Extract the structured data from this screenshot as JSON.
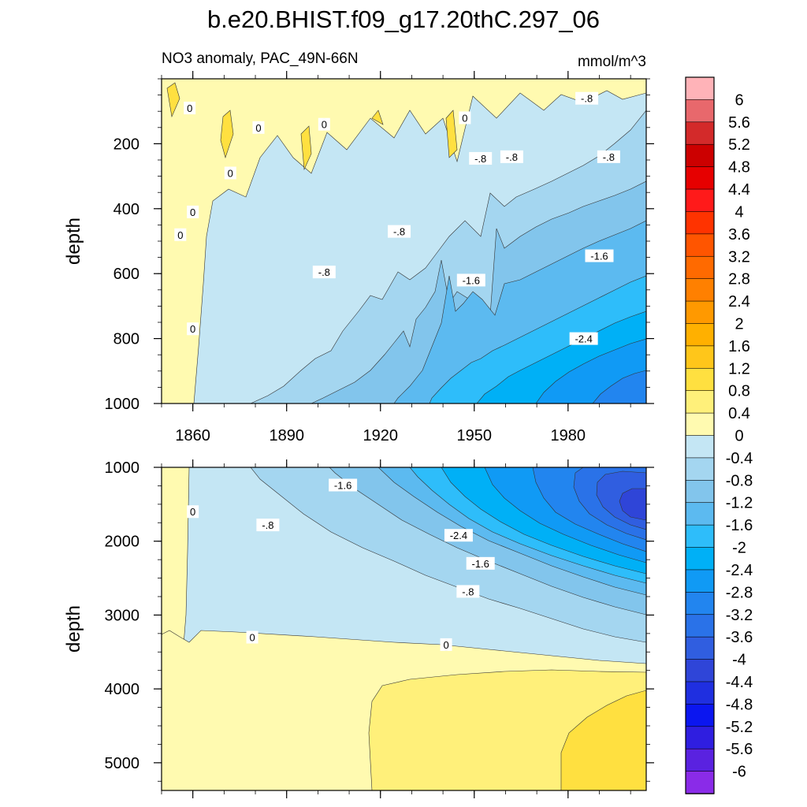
{
  "chart_data": [
    {
      "type": "heatmap",
      "title": "b.e20.BHIST.f09_g17.20thC.297_06",
      "left_label": "NO3 anomaly, PAC_49N-66N",
      "right_label": "mmol/m^3",
      "ylabel": "depth",
      "y_ticks": [
        "200",
        "400",
        "600",
        "800",
        "1000"
      ],
      "y_tick_values": [
        200,
        400,
        600,
        800,
        1000
      ],
      "ylim": [
        0,
        1000
      ],
      "y_reversed": true,
      "x_ticks": [
        "1860",
        "1890",
        "1920",
        "1950",
        "1980"
      ],
      "x_tick_values": [
        1860,
        1890,
        1920,
        1950,
        1980
      ],
      "xlim": [
        1850,
        2005
      ],
      "contour_labels": [
        {
          "text": "0",
          "x": 1859,
          "y": 90
        },
        {
          "text": "0",
          "x": 1872,
          "y": 290
        },
        {
          "text": "0",
          "x": 1860,
          "y": 410
        },
        {
          "text": "0",
          "x": 1856,
          "y": 480
        },
        {
          "text": "0",
          "x": 1860,
          "y": 770
        },
        {
          "text": "0",
          "x": 1881,
          "y": 150
        },
        {
          "text": "0",
          "x": 1902,
          "y": 140
        },
        {
          "text": "0",
          "x": 1947,
          "y": 120
        },
        {
          "text": "-.8",
          "x": 1986,
          "y": 60
        },
        {
          "text": "-.8",
          "x": 1952,
          "y": 245
        },
        {
          "text": "-.8",
          "x": 1962,
          "y": 240
        },
        {
          "text": "-.8",
          "x": 1993,
          "y": 240
        },
        {
          "text": "-.8",
          "x": 1926,
          "y": 470
        },
        {
          "text": "-.8",
          "x": 1902,
          "y": 595
        },
        {
          "text": "-1.6",
          "x": 1949,
          "y": 620
        },
        {
          "text": "-1.6",
          "x": 1990,
          "y": 545
        },
        {
          "text": "-2.4",
          "x": 1985,
          "y": 800
        }
      ]
    },
    {
      "type": "heatmap",
      "ylabel": "depth",
      "y_ticks": [
        "1000",
        "2000",
        "3000",
        "4000",
        "5000"
      ],
      "y_tick_values": [
        1000,
        2000,
        3000,
        4000,
        5000
      ],
      "ylim": [
        1000,
        5375
      ],
      "y_reversed": true,
      "xlim": [
        1850,
        2005
      ],
      "contour_labels": [
        {
          "text": "0",
          "x": 1860,
          "y": 1600
        },
        {
          "text": "0",
          "x": 1879,
          "y": 3300
        },
        {
          "text": "0",
          "x": 1941,
          "y": 3400
        },
        {
          "text": "-1.6",
          "x": 1908,
          "y": 1240
        },
        {
          "text": "-.8",
          "x": 1884,
          "y": 1780
        },
        {
          "text": "-2.4",
          "x": 1945,
          "y": 1920
        },
        {
          "text": "-1.6",
          "x": 1952,
          "y": 2300
        },
        {
          "text": "-.8",
          "x": 1948,
          "y": 2680
        }
      ]
    }
  ],
  "colorbar": {
    "labels": [
      "6",
      "5.6",
      "5.2",
      "4.8",
      "4.4",
      "4",
      "3.6",
      "3.2",
      "2.8",
      "2.4",
      "2",
      "1.6",
      "1.2",
      "0.8",
      "0.4",
      "0",
      "-0.4",
      "-0.8",
      "-1.2",
      "-1.6",
      "-2",
      "-2.4",
      "-2.8",
      "-3.2",
      "-3.6",
      "-4",
      "-4.4",
      "-4.8",
      "-5.2",
      "-5.6",
      "-6"
    ],
    "colors": [
      "#ffb3b8",
      "#e8686c",
      "#d32a2a",
      "#cc0000",
      "#e60000",
      "#ff1a1a",
      "#ff3300",
      "#ff5500",
      "#ff6a00",
      "#ff8000",
      "#ff9900",
      "#ffb000",
      "#ffc61a",
      "#ffe040",
      "#fff07a",
      "#fffab0",
      "#c4e6f4",
      "#a4d6f0",
      "#82c5ec",
      "#5cbaf0",
      "#2ebdfa",
      "#00b0f6",
      "#109af5",
      "#2285ef",
      "#2a72e8",
      "#305ee0",
      "#2f45d8",
      "#1f2fe0",
      "#0b16f0",
      "#2f1ee0",
      "#5a22e0",
      "#8a2be8"
    ]
  }
}
